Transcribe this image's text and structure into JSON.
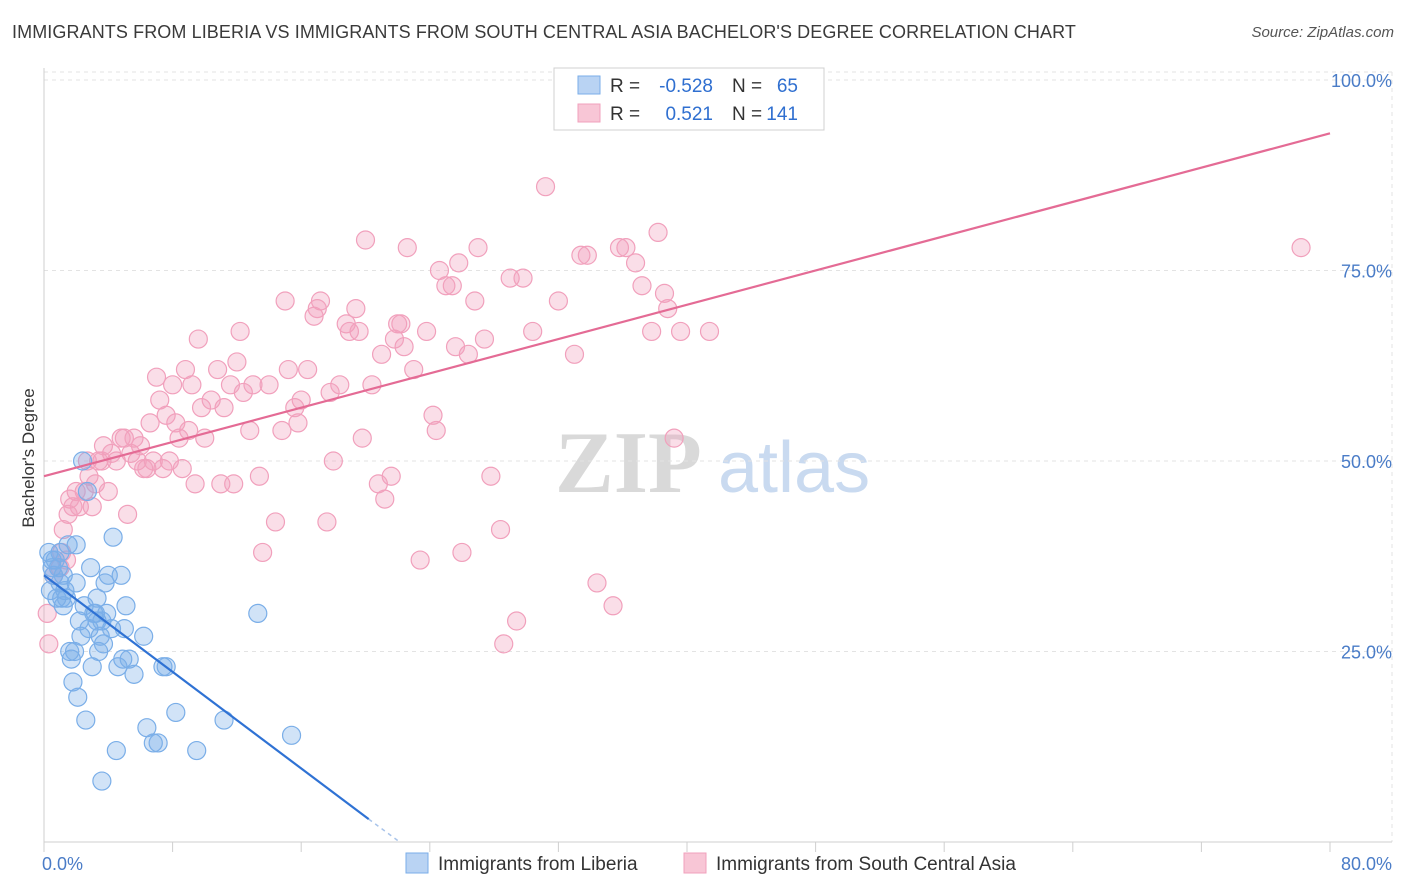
{
  "chart_data": {
    "type": "scatter",
    "title": "IMMIGRANTS FROM LIBERIA VS IMMIGRANTS FROM SOUTH CENTRAL ASIA BACHELOR'S DEGREE CORRELATION CHART",
    "source": "Source: ZipAtlas.com",
    "ylabel": "Bachelor's Degree",
    "xlim": [
      0,
      80
    ],
    "ylim": [
      0,
      100
    ],
    "x_tick_labels": [
      "0.0%",
      "80.0%"
    ],
    "y_ticks": [
      25,
      50,
      75,
      100
    ],
    "y_tick_labels": [
      "25.0%",
      "50.0%",
      "75.0%",
      "100.0%"
    ],
    "grid": true,
    "watermark": "ZIPatlas",
    "legend_position": "top-center",
    "stats": [
      {
        "r_label": "R =",
        "r_value": "-0.528",
        "n_label": "N =",
        "n_value": "65"
      },
      {
        "r_label": "R =",
        "r_value": "0.521",
        "n_label": "N =",
        "n_value": "141"
      }
    ],
    "series": [
      {
        "name": "Immigrants from Liberia",
        "color": "#7aaee8",
        "line_color": "#2f72d4",
        "trend": {
          "x": [
            0,
            20.2
          ],
          "y": [
            35,
            3
          ]
        },
        "trend_dashed": {
          "x": [
            20.2,
            22
          ],
          "y": [
            3,
            0.2
          ]
        },
        "points": [
          [
            0.3,
            38
          ],
          [
            0.5,
            36
          ],
          [
            0.6,
            35
          ],
          [
            0.8,
            32
          ],
          [
            1.0,
            38
          ],
          [
            1.0,
            34
          ],
          [
            1.2,
            35
          ],
          [
            1.2,
            31
          ],
          [
            1.4,
            32
          ],
          [
            1.5,
            39
          ],
          [
            1.6,
            25
          ],
          [
            1.7,
            24
          ],
          [
            1.8,
            21
          ],
          [
            2.0,
            39
          ],
          [
            2.0,
            34
          ],
          [
            2.1,
            19
          ],
          [
            2.2,
            29
          ],
          [
            2.4,
            50
          ],
          [
            2.5,
            31
          ],
          [
            2.6,
            16
          ],
          [
            2.7,
            46
          ],
          [
            2.8,
            28
          ],
          [
            3.0,
            23
          ],
          [
            3.1,
            30
          ],
          [
            3.2,
            30
          ],
          [
            3.3,
            32
          ],
          [
            3.4,
            25
          ],
          [
            3.5,
            27
          ],
          [
            3.6,
            8
          ],
          [
            3.7,
            26
          ],
          [
            3.8,
            34
          ],
          [
            4.0,
            35
          ],
          [
            4.2,
            28
          ],
          [
            4.3,
            40
          ],
          [
            4.5,
            12
          ],
          [
            4.6,
            23
          ],
          [
            4.8,
            35
          ],
          [
            5.0,
            28
          ],
          [
            5.1,
            31
          ],
          [
            5.3,
            24
          ],
          [
            6.2,
            27
          ],
          [
            6.4,
            15
          ],
          [
            6.8,
            13
          ],
          [
            7.1,
            13
          ],
          [
            7.4,
            23
          ],
          [
            7.6,
            23
          ],
          [
            8.2,
            17
          ],
          [
            9.5,
            12
          ],
          [
            11.2,
            16
          ],
          [
            13.3,
            30
          ],
          [
            15.4,
            14
          ],
          [
            0.4,
            33
          ],
          [
            0.9,
            36
          ],
          [
            1.3,
            33
          ],
          [
            2.9,
            36
          ],
          [
            3.9,
            30
          ],
          [
            0.7,
            37
          ],
          [
            1.1,
            32
          ],
          [
            2.3,
            27
          ],
          [
            3.6,
            29
          ],
          [
            4.9,
            24
          ],
          [
            5.6,
            22
          ],
          [
            0.5,
            37
          ],
          [
            1.9,
            25
          ],
          [
            3.3,
            29
          ]
        ]
      },
      {
        "name": "Immigrants from South Central Asia",
        "color": "#f1a0bc",
        "line_color": "#e46b95",
        "trend": {
          "x": [
            0,
            80
          ],
          "y": [
            48,
            93
          ]
        },
        "points": [
          [
            0.2,
            30
          ],
          [
            0.3,
            26
          ],
          [
            0.6,
            35
          ],
          [
            1.0,
            36
          ],
          [
            1.1,
            38
          ],
          [
            1.2,
            41
          ],
          [
            1.4,
            37
          ],
          [
            1.5,
            43
          ],
          [
            1.6,
            45
          ],
          [
            1.8,
            44
          ],
          [
            2.0,
            46
          ],
          [
            2.2,
            44
          ],
          [
            2.5,
            46
          ],
          [
            2.7,
            50
          ],
          [
            2.8,
            48
          ],
          [
            3.0,
            44
          ],
          [
            3.2,
            47
          ],
          [
            3.4,
            50
          ],
          [
            3.6,
            50
          ],
          [
            3.7,
            52
          ],
          [
            4.0,
            46
          ],
          [
            4.2,
            51
          ],
          [
            4.5,
            50
          ],
          [
            4.8,
            53
          ],
          [
            5.0,
            53
          ],
          [
            5.2,
            43
          ],
          [
            5.4,
            51
          ],
          [
            5.6,
            53
          ],
          [
            5.8,
            50
          ],
          [
            6.0,
            52
          ],
          [
            6.2,
            49
          ],
          [
            6.4,
            49
          ],
          [
            6.6,
            55
          ],
          [
            6.8,
            50
          ],
          [
            7.0,
            61
          ],
          [
            7.2,
            58
          ],
          [
            7.4,
            49
          ],
          [
            7.6,
            56
          ],
          [
            7.8,
            50
          ],
          [
            8.0,
            60
          ],
          [
            8.2,
            55
          ],
          [
            8.4,
            53
          ],
          [
            8.6,
            49
          ],
          [
            8.8,
            62
          ],
          [
            9.0,
            54
          ],
          [
            9.2,
            60
          ],
          [
            9.4,
            47
          ],
          [
            9.6,
            66
          ],
          [
            9.8,
            57
          ],
          [
            10.0,
            53
          ],
          [
            10.4,
            58
          ],
          [
            10.8,
            62
          ],
          [
            11.0,
            47
          ],
          [
            11.2,
            57
          ],
          [
            11.6,
            60
          ],
          [
            11.8,
            47
          ],
          [
            12.0,
            63
          ],
          [
            12.2,
            67
          ],
          [
            12.4,
            59
          ],
          [
            12.8,
            54
          ],
          [
            13.0,
            60
          ],
          [
            13.4,
            48
          ],
          [
            13.6,
            38
          ],
          [
            14.0,
            60
          ],
          [
            14.4,
            42
          ],
          [
            14.8,
            54
          ],
          [
            15.0,
            71
          ],
          [
            15.2,
            62
          ],
          [
            15.6,
            57
          ],
          [
            15.8,
            55
          ],
          [
            16.0,
            58
          ],
          [
            16.4,
            62
          ],
          [
            16.8,
            69
          ],
          [
            17.0,
            70
          ],
          [
            17.2,
            71
          ],
          [
            17.6,
            42
          ],
          [
            17.8,
            59
          ],
          [
            18.0,
            50
          ],
          [
            18.4,
            60
          ],
          [
            18.8,
            68
          ],
          [
            19.0,
            67
          ],
          [
            19.4,
            70
          ],
          [
            19.6,
            67
          ],
          [
            19.8,
            53
          ],
          [
            20.0,
            79
          ],
          [
            20.4,
            60
          ],
          [
            20.8,
            47
          ],
          [
            21.0,
            64
          ],
          [
            21.2,
            45
          ],
          [
            21.6,
            48
          ],
          [
            21.8,
            66
          ],
          [
            22.0,
            68
          ],
          [
            22.2,
            68
          ],
          [
            22.4,
            65
          ],
          [
            22.6,
            78
          ],
          [
            23.0,
            62
          ],
          [
            23.4,
            37
          ],
          [
            23.8,
            67
          ],
          [
            24.2,
            56
          ],
          [
            24.4,
            54
          ],
          [
            24.6,
            75
          ],
          [
            25.0,
            73
          ],
          [
            25.4,
            73
          ],
          [
            25.6,
            65
          ],
          [
            25.8,
            76
          ],
          [
            26.0,
            38
          ],
          [
            26.4,
            64
          ],
          [
            26.8,
            71
          ],
          [
            27.0,
            78
          ],
          [
            27.4,
            66
          ],
          [
            27.8,
            48
          ],
          [
            28.4,
            41
          ],
          [
            28.6,
            26
          ],
          [
            29.0,
            74
          ],
          [
            29.4,
            29
          ],
          [
            29.8,
            74
          ],
          [
            30.4,
            67
          ],
          [
            31.2,
            86
          ],
          [
            32.0,
            71
          ],
          [
            33.0,
            64
          ],
          [
            33.4,
            77
          ],
          [
            33.8,
            77
          ],
          [
            34.4,
            34
          ],
          [
            35.4,
            31
          ],
          [
            35.8,
            78
          ],
          [
            36.2,
            78
          ],
          [
            36.8,
            76
          ],
          [
            37.2,
            73
          ],
          [
            37.8,
            67
          ],
          [
            38.2,
            80
          ],
          [
            38.6,
            72
          ],
          [
            38.8,
            70
          ],
          [
            39.2,
            53
          ],
          [
            39.6,
            67
          ],
          [
            41.4,
            67
          ],
          [
            78.2,
            78
          ]
        ]
      }
    ]
  },
  "bottom_legend": [
    "Immigrants from Liberia",
    "Immigrants from South Central Asia"
  ]
}
